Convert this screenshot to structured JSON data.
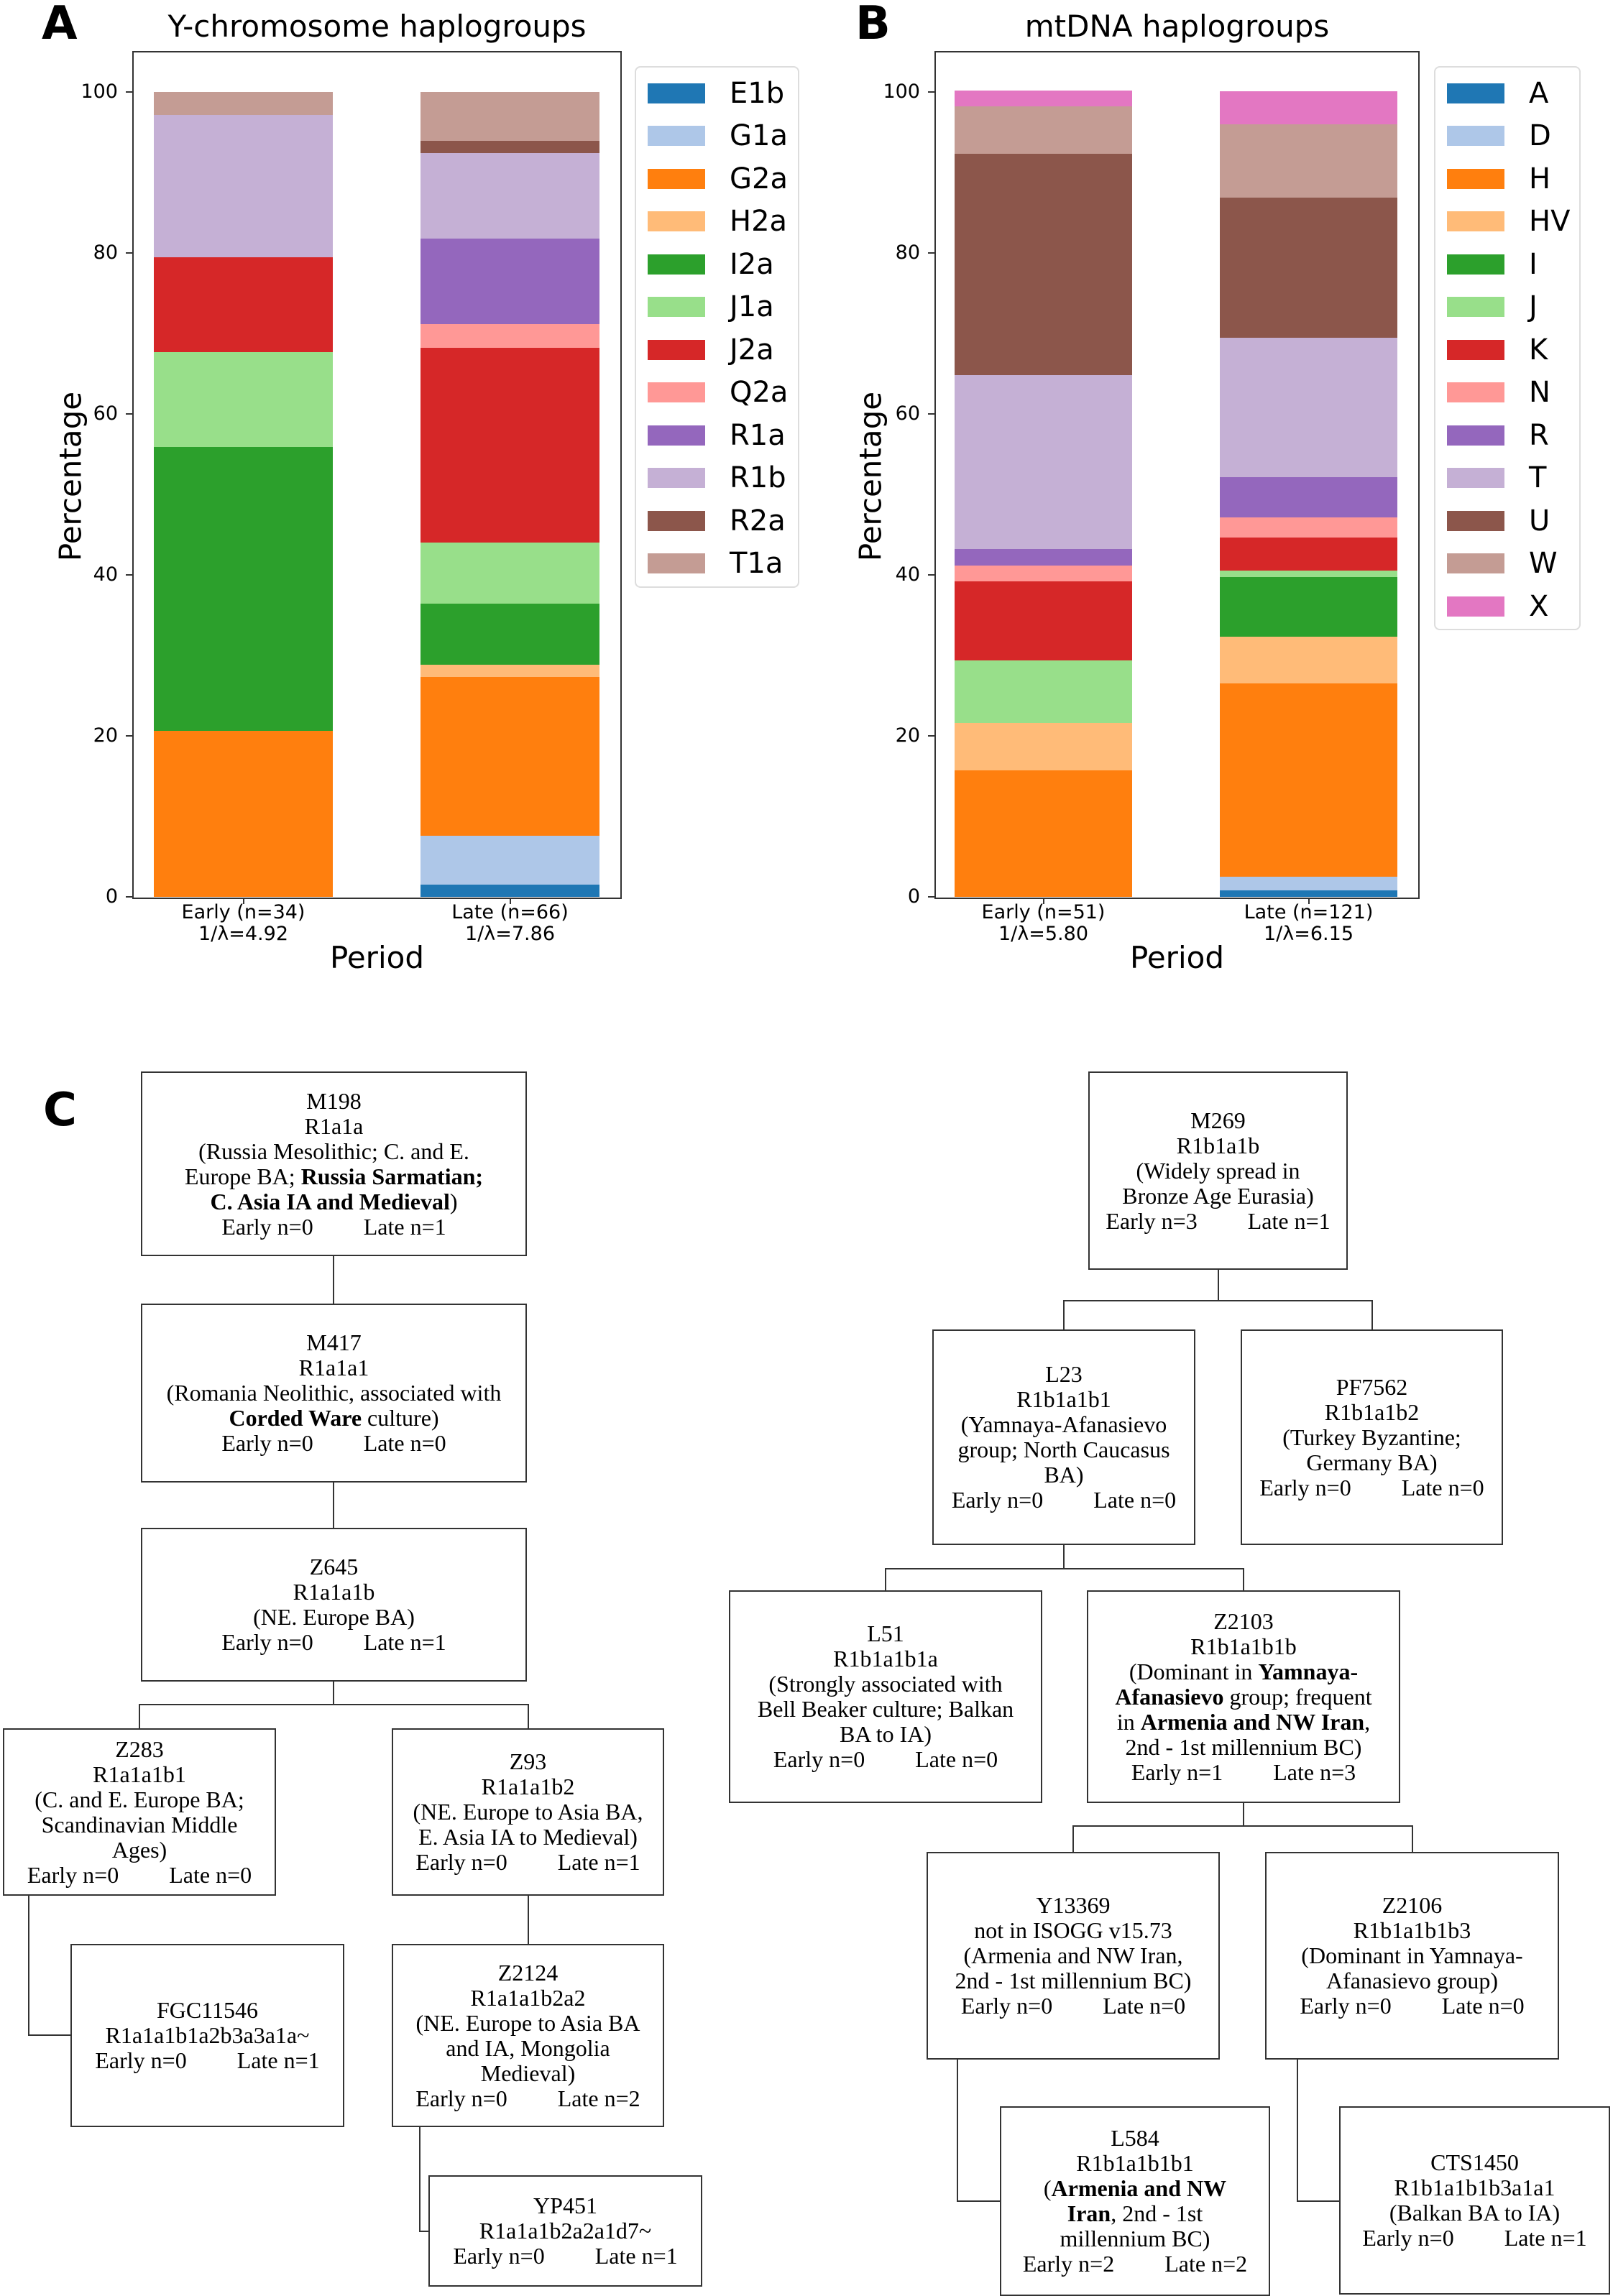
{
  "panels": {
    "a": "A",
    "b": "B",
    "c": "C"
  },
  "chart_data": [
    {
      "type": "bar",
      "stacked": true,
      "title": "Y-chromosome haplogroups",
      "xlabel": "Period",
      "ylabel": "Percentage",
      "ylim": [
        0,
        105
      ],
      "yticks": [
        "0",
        "20",
        "40",
        "60",
        "80",
        "100"
      ],
      "categories": [
        [
          "Early (n=34)",
          "1/λ=4.92"
        ],
        [
          "Late (n=66)",
          "1/λ=7.86"
        ]
      ],
      "legend_position": "outside-right",
      "series": [
        {
          "name": "E1b",
          "color": "#1f77b4",
          "values": [
            0,
            1.5
          ]
        },
        {
          "name": "G1a",
          "color": "#aec7e8",
          "values": [
            0,
            6.1
          ]
        },
        {
          "name": "G2a",
          "color": "#ff7f0e",
          "values": [
            20.6,
            19.7
          ]
        },
        {
          "name": "H2a",
          "color": "#ffbb78",
          "values": [
            0,
            1.5
          ]
        },
        {
          "name": "I2a",
          "color": "#2ca02c",
          "values": [
            35.3,
            7.6
          ]
        },
        {
          "name": "J1a",
          "color": "#98df8a",
          "values": [
            11.8,
            7.6
          ]
        },
        {
          "name": "J2a",
          "color": "#d62728",
          "values": [
            11.8,
            24.2
          ]
        },
        {
          "name": "Q2a",
          "color": "#ff9896",
          "values": [
            0,
            3.0
          ]
        },
        {
          "name": "R1a",
          "color": "#9467bd",
          "values": [
            0,
            10.6
          ]
        },
        {
          "name": "R1b",
          "color": "#c5b0d5",
          "values": [
            17.6,
            10.6
          ]
        },
        {
          "name": "R2a",
          "color": "#8c564b",
          "values": [
            0,
            1.5
          ]
        },
        {
          "name": "T1a",
          "color": "#c49c94",
          "values": [
            2.9,
            6.1
          ]
        }
      ]
    },
    {
      "type": "bar",
      "stacked": true,
      "title": "mtDNA haplogroups",
      "xlabel": "Period",
      "ylabel": "Percentage",
      "ylim": [
        0,
        105
      ],
      "yticks": [
        "0",
        "20",
        "40",
        "60",
        "80",
        "100"
      ],
      "categories": [
        [
          "Early (n=51)",
          "1/λ=5.80"
        ],
        [
          "Late (n=121)",
          "1/λ=6.15"
        ]
      ],
      "legend_position": "outside-right",
      "series": [
        {
          "name": "A",
          "color": "#1f77b4",
          "values": [
            0,
            0.8
          ]
        },
        {
          "name": "D",
          "color": "#aec7e8",
          "values": [
            0,
            1.7
          ]
        },
        {
          "name": "H",
          "color": "#ff7f0e",
          "values": [
            15.7,
            24.0
          ]
        },
        {
          "name": "HV",
          "color": "#ffbb78",
          "values": [
            5.9,
            5.8
          ]
        },
        {
          "name": "I",
          "color": "#2ca02c",
          "values": [
            0,
            7.4
          ]
        },
        {
          "name": "J",
          "color": "#98df8a",
          "values": [
            7.8,
            0.8
          ]
        },
        {
          "name": "K",
          "color": "#d62728",
          "values": [
            9.8,
            4.1
          ]
        },
        {
          "name": "N",
          "color": "#ff9896",
          "values": [
            2.0,
            2.5
          ]
        },
        {
          "name": "R",
          "color": "#9467bd",
          "values": [
            2.0,
            5.0
          ]
        },
        {
          "name": "T",
          "color": "#c5b0d5",
          "values": [
            21.6,
            17.4
          ]
        },
        {
          "name": "U",
          "color": "#8c564b",
          "values": [
            27.5,
            17.4
          ]
        },
        {
          "name": "W",
          "color": "#c49c94",
          "values": [
            5.9,
            9.1
          ]
        },
        {
          "name": "X",
          "color": "#e377c2",
          "values": [
            2.0,
            4.1
          ]
        }
      ]
    }
  ],
  "tree": {
    "M198": {
      "lines": [
        [
          {
            "t": "M198"
          }
        ],
        [
          {
            "t": "R1a1a"
          }
        ],
        [
          {
            "t": "(Russia Mesolithic; C. and E."
          }
        ],
        [
          {
            "t": "Europe BA; "
          },
          {
            "t": "Russia Sarmatian;",
            "b": true
          }
        ],
        [
          {
            "t": "C. Asia IA and Medieval",
            "b": true
          },
          {
            "t": ")"
          }
        ]
      ],
      "early": "Early n=0",
      "late": "Late n=1"
    },
    "M417": {
      "lines": [
        [
          {
            "t": "M417"
          }
        ],
        [
          {
            "t": "R1a1a1"
          }
        ],
        [
          {
            "t": "(Romania Neolithic, associated with"
          }
        ],
        [
          {
            "t": "Corded Ware",
            "b": true
          },
          {
            "t": " culture)"
          }
        ]
      ],
      "early": "Early n=0",
      "late": "Late n=0"
    },
    "Z645": {
      "lines": [
        [
          {
            "t": "Z645"
          }
        ],
        [
          {
            "t": "R1a1a1b"
          }
        ],
        [
          {
            "t": "(NE. Europe BA)"
          }
        ]
      ],
      "early": "Early n=0",
      "late": "Late n=1"
    },
    "Z283": {
      "lines": [
        [
          {
            "t": "Z283"
          }
        ],
        [
          {
            "t": "R1a1a1b1"
          }
        ],
        [
          {
            "t": "(C. and E. Europe BA;"
          }
        ],
        [
          {
            "t": "Scandinavian Middle"
          }
        ],
        [
          {
            "t": "Ages)"
          }
        ]
      ],
      "early": "Early n=0",
      "late": "Late n=0"
    },
    "Z93": {
      "lines": [
        [
          {
            "t": "Z93"
          }
        ],
        [
          {
            "t": "R1a1a1b2"
          }
        ],
        [
          {
            "t": "(NE. Europe to Asia BA,"
          }
        ],
        [
          {
            "t": "E. Asia IA to Medieval)"
          }
        ]
      ],
      "early": "Early n=0",
      "late": "Late n=1"
    },
    "FGC11546": {
      "lines": [
        [
          {
            "t": "FGC11546"
          }
        ],
        [
          {
            "t": "R1a1a1b1a2b3a3a1a~"
          }
        ]
      ],
      "early": "Early n=0",
      "late": "Late n=1"
    },
    "Z2124": {
      "lines": [
        [
          {
            "t": "Z2124"
          }
        ],
        [
          {
            "t": "R1a1a1b2a2"
          }
        ],
        [
          {
            "t": "(NE. Europe to Asia BA"
          }
        ],
        [
          {
            "t": "and IA, Mongolia"
          }
        ],
        [
          {
            "t": "Medieval)"
          }
        ]
      ],
      "early": "Early n=0",
      "late": "Late n=2"
    },
    "YP451": {
      "lines": [
        [
          {
            "t": "YP451"
          }
        ],
        [
          {
            "t": "R1a1a1b2a2a1d7~"
          }
        ]
      ],
      "early": "Early n=0",
      "late": "Late n=1"
    },
    "M269": {
      "lines": [
        [
          {
            "t": "M269"
          }
        ],
        [
          {
            "t": "R1b1a1b"
          }
        ],
        [
          {
            "t": "(Widely spread in"
          }
        ],
        [
          {
            "t": "Bronze Age Eurasia)"
          }
        ]
      ],
      "early": "Early n=3",
      "late": "Late n=1"
    },
    "L23": {
      "lines": [
        [
          {
            "t": "L23"
          }
        ],
        [
          {
            "t": "R1b1a1b1"
          }
        ],
        [
          {
            "t": "(Yamnaya-Afanasievo"
          }
        ],
        [
          {
            "t": "group; North Caucasus"
          }
        ],
        [
          {
            "t": "BA)"
          }
        ]
      ],
      "early": "Early n=0",
      "late": "Late n=0"
    },
    "PF7562": {
      "lines": [
        [
          {
            "t": "PF7562"
          }
        ],
        [
          {
            "t": "R1b1a1b2"
          }
        ],
        [
          {
            "t": "(Turkey Byzantine;"
          }
        ],
        [
          {
            "t": "Germany BA)"
          }
        ]
      ],
      "early": "Early n=0",
      "late": "Late n=0"
    },
    "L51": {
      "lines": [
        [
          {
            "t": "L51"
          }
        ],
        [
          {
            "t": "R1b1a1b1a"
          }
        ],
        [
          {
            "t": "(Strongly associated with"
          }
        ],
        [
          {
            "t": "Bell Beaker culture; Balkan"
          }
        ],
        [
          {
            "t": "BA to IA)"
          }
        ]
      ],
      "early": "Early n=0",
      "late": "Late n=0"
    },
    "Z2103": {
      "lines": [
        [
          {
            "t": "Z2103"
          }
        ],
        [
          {
            "t": "R1b1a1b1b"
          }
        ],
        [
          {
            "t": "(Dominant in "
          },
          {
            "t": "Yamnaya-",
            "b": true
          }
        ],
        [
          {
            "t": "Afanasievo",
            "b": true
          },
          {
            "t": " group; frequent"
          }
        ],
        [
          {
            "t": "in "
          },
          {
            "t": "Armenia and NW Iran",
            "b": true
          },
          {
            "t": ","
          }
        ],
        [
          {
            "t": "2nd - 1st millennium BC)"
          }
        ]
      ],
      "early": "Early n=1",
      "late": "Late n=3"
    },
    "Y13369": {
      "lines": [
        [
          {
            "t": "Y13369"
          }
        ],
        [
          {
            "t": "not in ISOGG v15.73"
          }
        ],
        [
          {
            "t": "(Armenia and NW Iran,"
          }
        ],
        [
          {
            "t": "2nd - 1st millennium BC)"
          }
        ]
      ],
      "early": "Early n=0",
      "late": "Late n=0"
    },
    "Z2106": {
      "lines": [
        [
          {
            "t": "Z2106"
          }
        ],
        [
          {
            "t": "R1b1a1b1b3"
          }
        ],
        [
          {
            "t": "(Dominant in Yamnaya-"
          }
        ],
        [
          {
            "t": "Afanasievo group)"
          }
        ]
      ],
      "early": "Early n=0",
      "late": "Late n=0"
    },
    "L584": {
      "lines": [
        [
          {
            "t": "L584"
          }
        ],
        [
          {
            "t": "R1b1a1b1b1"
          }
        ],
        [
          {
            "t": "("
          },
          {
            "t": "Armenia and NW",
            "b": true
          }
        ],
        [
          {
            "t": "Iran",
            "b": true
          },
          {
            "t": ", 2nd - 1st"
          }
        ],
        [
          {
            "t": "millennium BC)"
          }
        ]
      ],
      "early": "Early n=2",
      "late": "Late n=2"
    },
    "CTS1450": {
      "lines": [
        [
          {
            "t": "CTS1450"
          }
        ],
        [
          {
            "t": "R1b1a1b1b3a1a1"
          }
        ],
        [
          {
            "t": "(Balkan BA to IA)"
          }
        ]
      ],
      "early": "Early n=0",
      "late": "Late n=1"
    }
  }
}
